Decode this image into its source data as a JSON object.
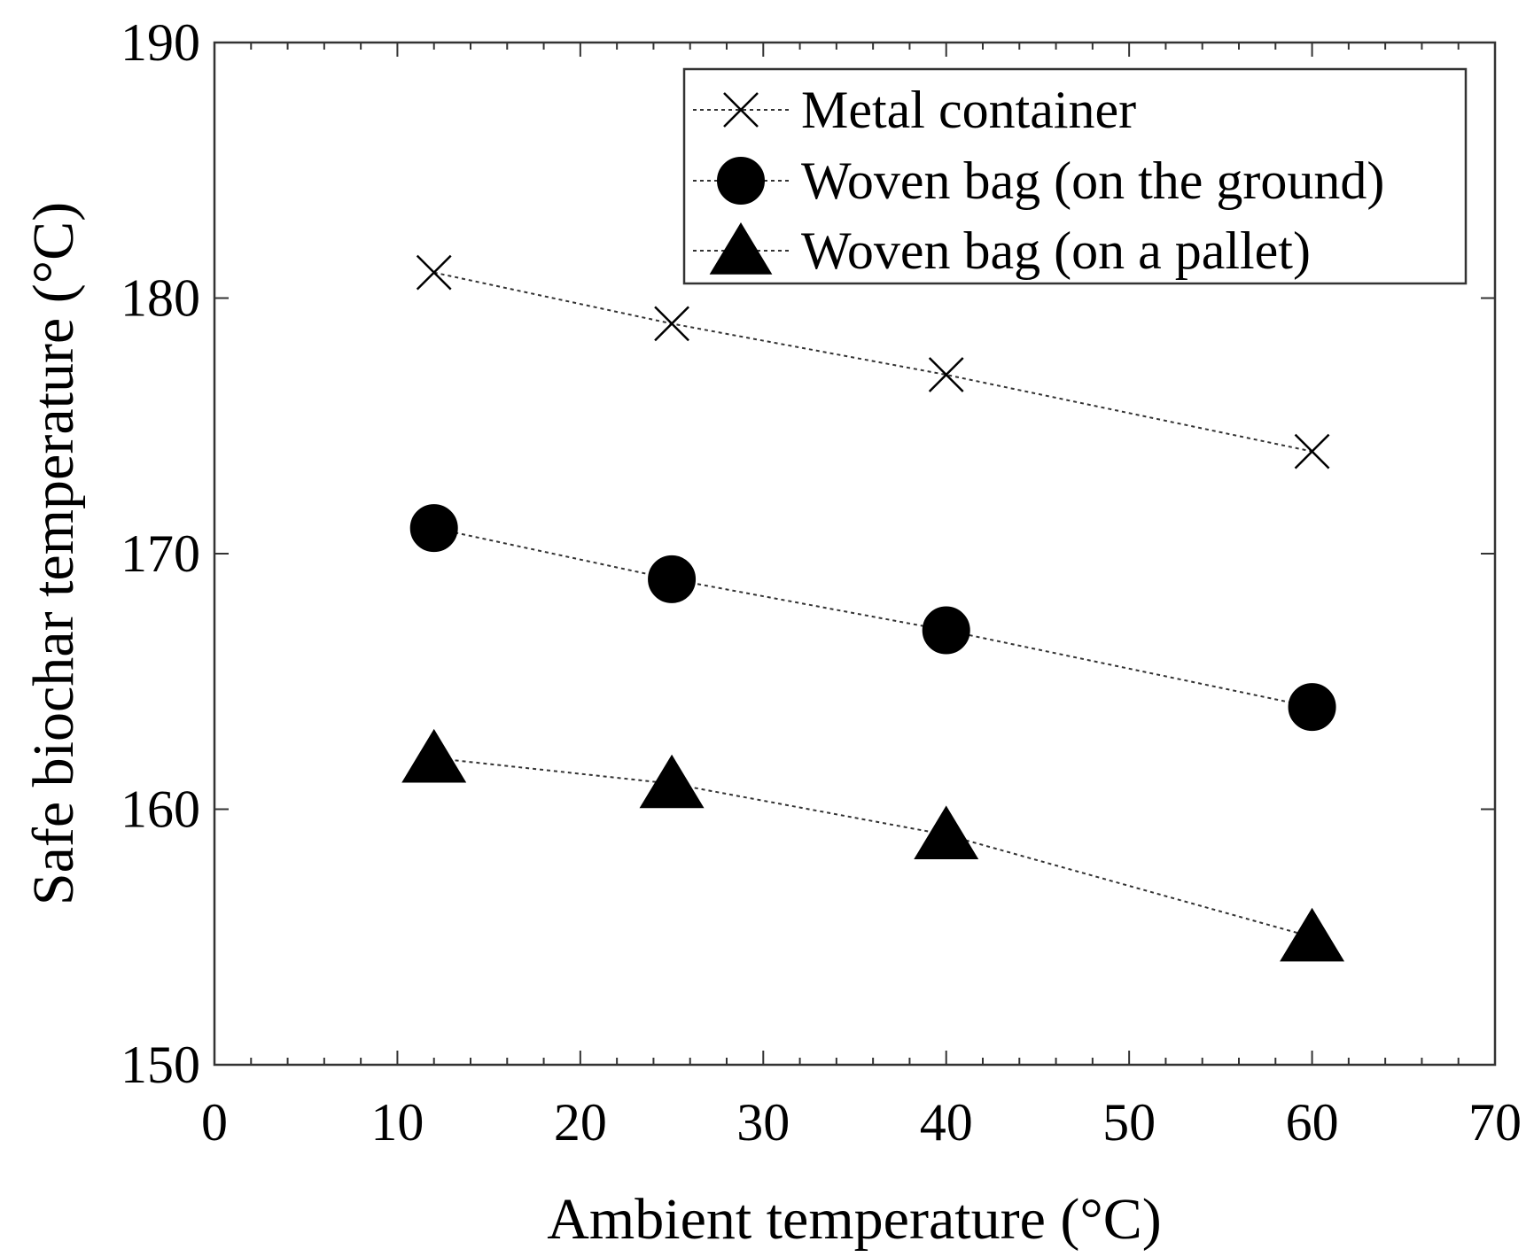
{
  "chart_data": {
    "type": "line",
    "title": "",
    "xlabel": "Ambient temperature (°C)",
    "ylabel": "Safe biochar temperature (°C)",
    "xlim": [
      0,
      70
    ],
    "ylim": [
      150,
      190
    ],
    "xticks": [
      0,
      10,
      20,
      30,
      40,
      50,
      60,
      70
    ],
    "yticks": [
      150,
      160,
      170,
      180,
      190
    ],
    "x": [
      12,
      25,
      40,
      60
    ],
    "grid": false,
    "legend_position": "top-right",
    "series": [
      {
        "name": "Metal container",
        "marker": "x",
        "line": "dotted",
        "values": [
          181,
          179,
          177,
          174
        ]
      },
      {
        "name": "Woven bag (on the ground)",
        "marker": "circle",
        "line": "dotted",
        "values": [
          171,
          169,
          167,
          164
        ]
      },
      {
        "name": "Woven bag (on a pallet)",
        "marker": "triangle",
        "line": "dotted",
        "values": [
          162,
          161,
          159,
          155
        ]
      }
    ]
  }
}
